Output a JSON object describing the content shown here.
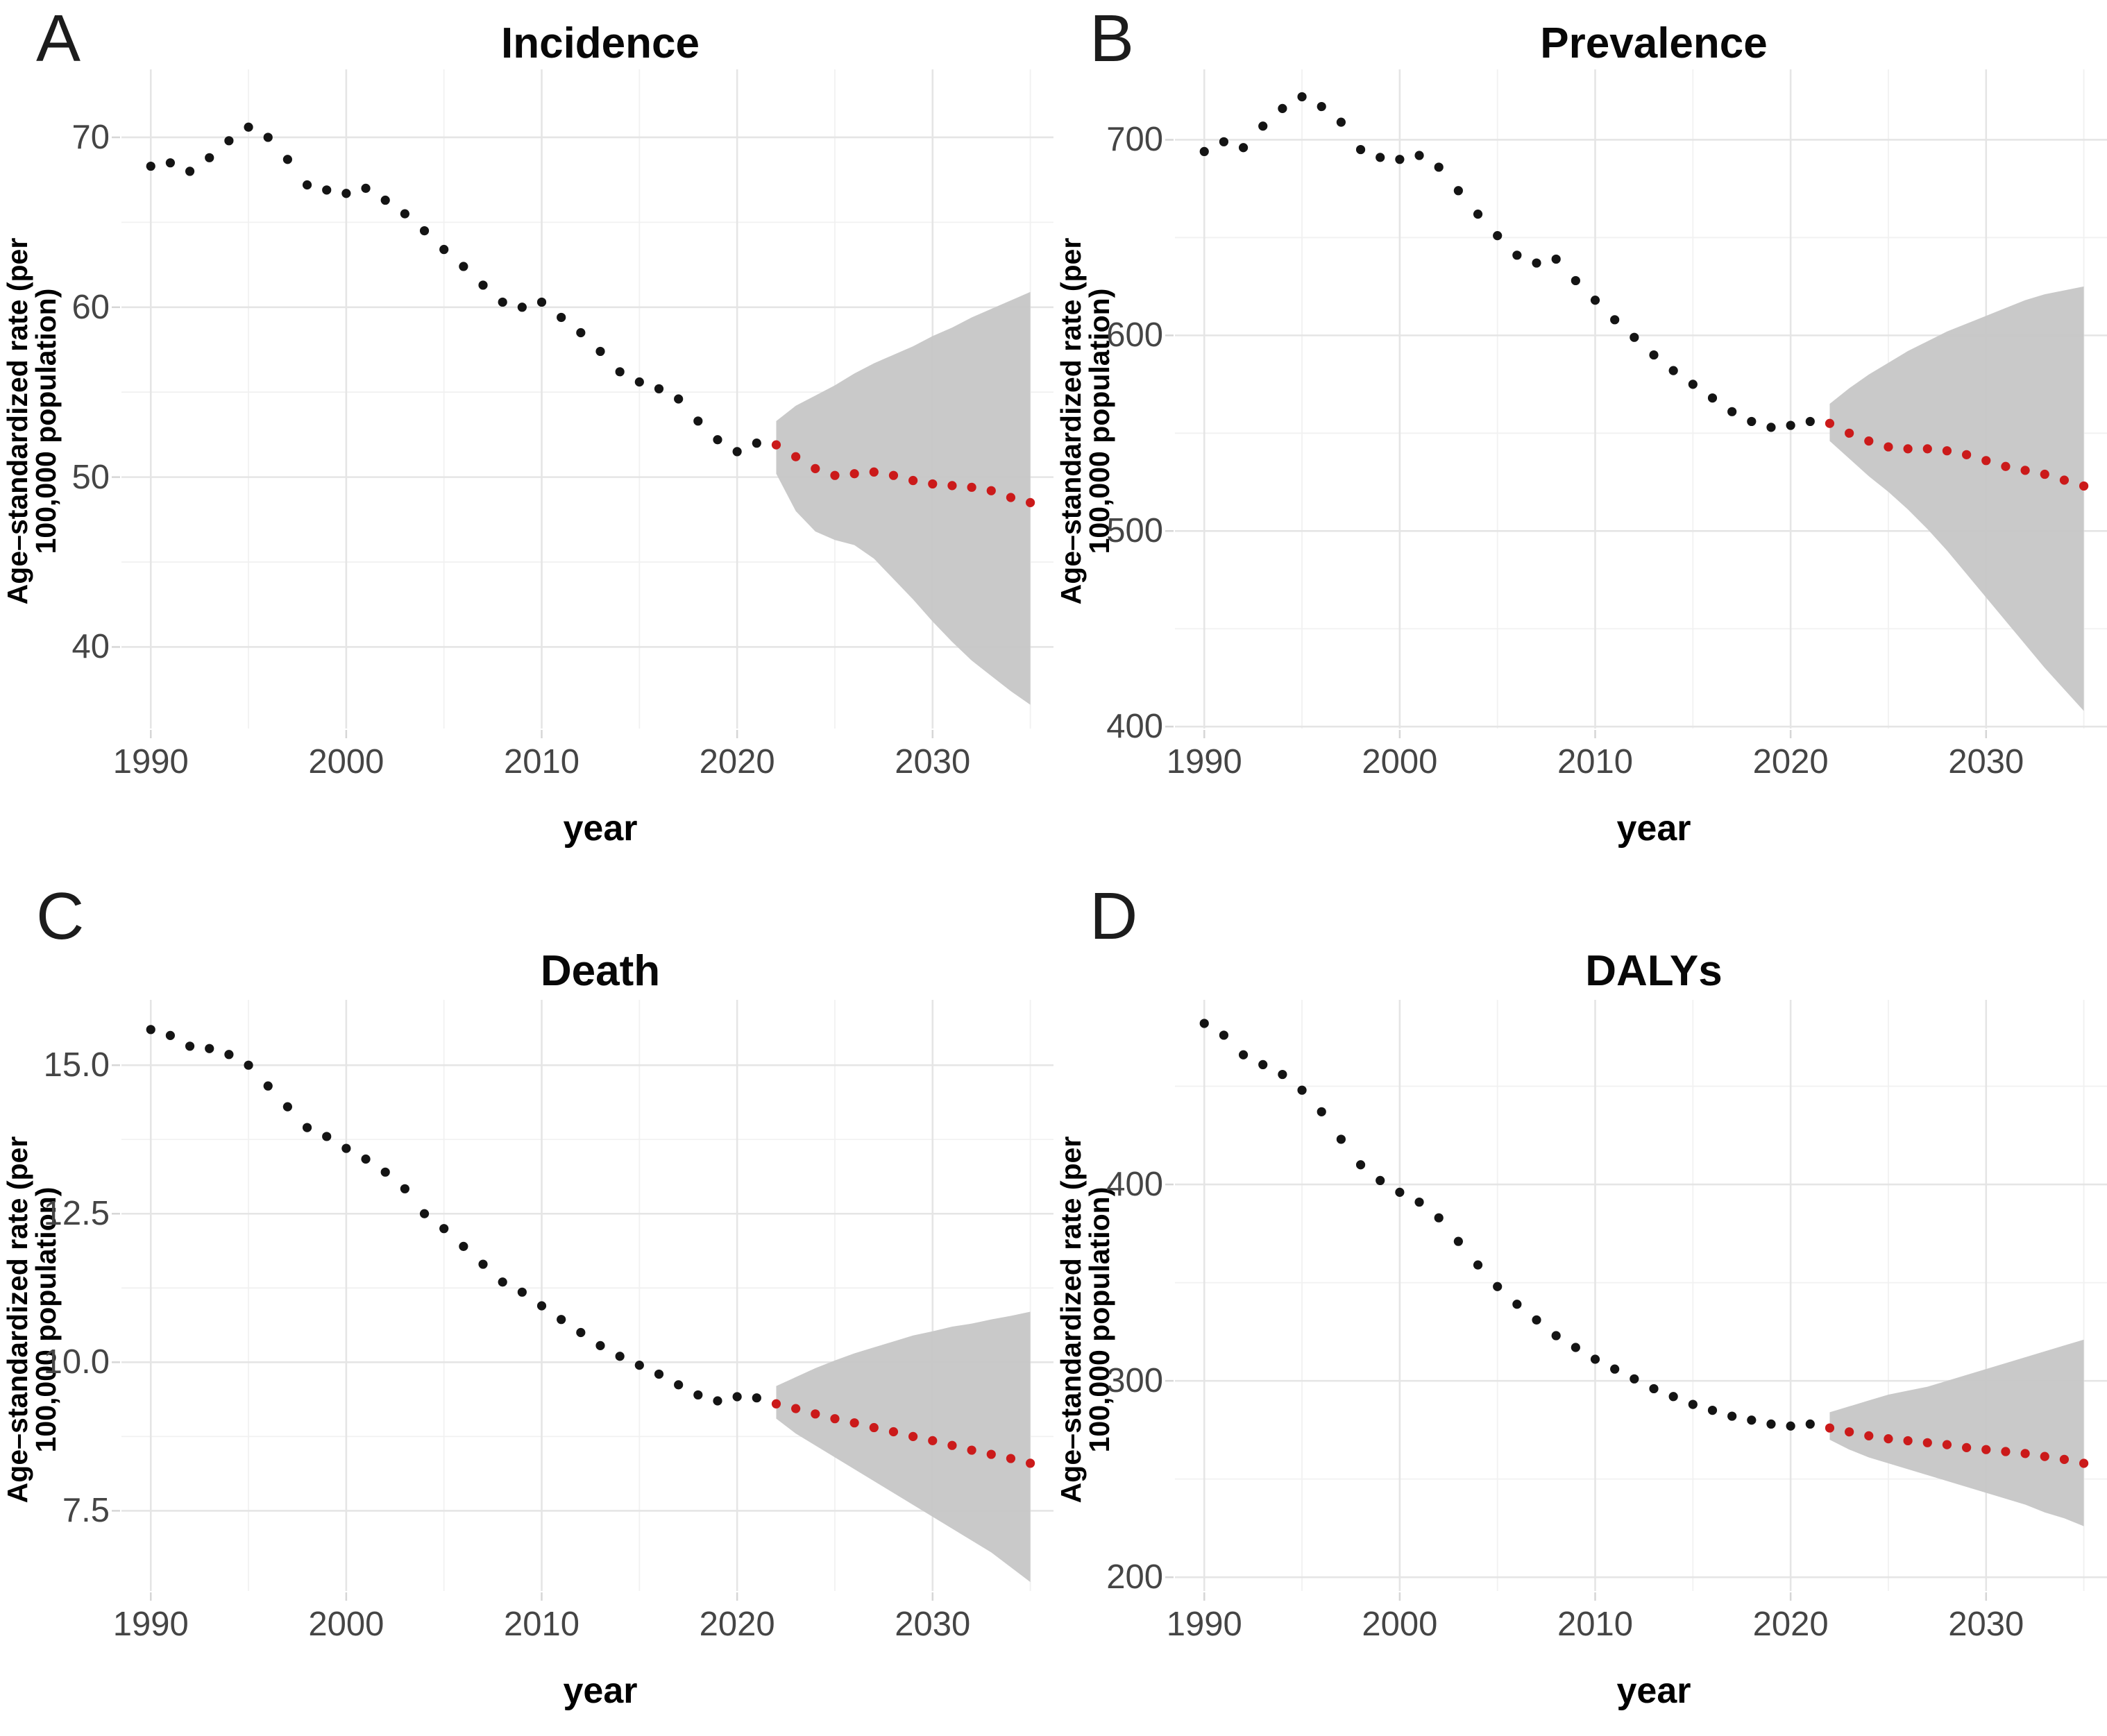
{
  "figure": {
    "xlabel": "year",
    "ylabel": "Age–standardized rate (per 100,000 population)",
    "x_domain": [
      1988.5,
      2037.5
    ],
    "x_ticks": [
      1990,
      2000,
      2010,
      2020,
      2030
    ],
    "x_tick_labels": [
      "1990",
      "2000",
      "2010",
      "2020",
      "2030"
    ],
    "x_minor_ticks": [
      1995,
      2005,
      2015,
      2025,
      2035
    ]
  },
  "colors": {
    "background": "#ffffff",
    "observed_point": "#141414",
    "projected_point": "#cb1a1a",
    "ribbon": "#c7c7c7",
    "grid_major": "#e5e5e5",
    "grid_minor": "#f1f1f1",
    "axis_tick": "#d6d6d6",
    "tick_label": "#454545",
    "text": "#000000"
  },
  "chart_data": [
    {
      "panel_label": "A",
      "title": "Incidence",
      "clipped_marks": "● ● ● ● ●",
      "type": "scatter",
      "xlabel": "year",
      "ylabel": "Age–standardized rate (per 100,000 population)",
      "y_domain": [
        35.2,
        74.0
      ],
      "y_ticks": [
        40,
        50,
        60,
        70
      ],
      "y_tick_labels": [
        "40",
        "50",
        "60",
        "70"
      ],
      "y_minor_ticks": [
        45,
        55,
        65
      ],
      "observed": {
        "years": [
          1990,
          1991,
          1992,
          1993,
          1994,
          1995,
          1996,
          1997,
          1998,
          1999,
          2000,
          2001,
          2002,
          2003,
          2004,
          2005,
          2006,
          2007,
          2008,
          2009,
          2010,
          2011,
          2012,
          2013,
          2014,
          2015,
          2016,
          2017,
          2018,
          2019,
          2020,
          2021
        ],
        "values": [
          68.3,
          68.5,
          68.0,
          68.8,
          69.8,
          70.6,
          70.0,
          68.7,
          67.2,
          66.9,
          66.7,
          67.0,
          66.3,
          65.5,
          64.5,
          63.4,
          62.4,
          61.3,
          60.3,
          60.0,
          60.3,
          59.4,
          58.5,
          57.4,
          56.2,
          55.6,
          55.2,
          54.6,
          53.3,
          52.2,
          51.5,
          52.0
        ]
      },
      "projected": {
        "years": [
          2022,
          2023,
          2024,
          2025,
          2026,
          2027,
          2028,
          2029,
          2030,
          2031,
          2032,
          2033,
          2034,
          2035
        ],
        "values": [
          51.9,
          51.2,
          50.5,
          50.1,
          50.2,
          50.3,
          50.1,
          49.8,
          49.6,
          49.5,
          49.4,
          49.2,
          48.8,
          48.5
        ]
      },
      "uncertainty_ribbon": {
        "years": [
          2022,
          2023,
          2024,
          2025,
          2026,
          2027,
          2028,
          2029,
          2030,
          2031,
          2032,
          2033,
          2034,
          2035
        ],
        "upper": [
          53.3,
          54.2,
          54.8,
          55.4,
          56.1,
          56.7,
          57.2,
          57.7,
          58.3,
          58.8,
          59.4,
          59.9,
          60.4,
          60.9
        ],
        "lower": [
          50.2,
          48.0,
          46.8,
          46.3,
          46.0,
          45.2,
          44.0,
          42.8,
          41.5,
          40.3,
          39.2,
          38.3,
          37.4,
          36.6
        ]
      }
    },
    {
      "panel_label": "B",
      "title": "Prevalence",
      "type": "scatter",
      "xlabel": "year",
      "ylabel": "Age–standardized rate (per 100,000 population)",
      "y_domain": [
        399,
        736
      ],
      "y_ticks": [
        400,
        500,
        600,
        700
      ],
      "y_tick_labels": [
        "400",
        "500",
        "600",
        "700"
      ],
      "y_minor_ticks": [
        450,
        550,
        650
      ],
      "observed": {
        "years": [
          1990,
          1991,
          1992,
          1993,
          1994,
          1995,
          1996,
          1997,
          1998,
          1999,
          2000,
          2001,
          2002,
          2003,
          2004,
          2005,
          2006,
          2007,
          2008,
          2009,
          2010,
          2011,
          2012,
          2013,
          2014,
          2015,
          2016,
          2017,
          2018,
          2019,
          2020,
          2021
        ],
        "values": [
          694,
          699,
          696,
          707,
          716,
          722,
          717,
          709,
          695,
          691,
          690,
          692,
          686,
          674,
          662,
          651,
          641,
          637,
          639,
          628,
          618,
          608,
          599,
          590,
          582,
          575,
          568,
          561,
          556,
          553,
          554,
          556
        ]
      },
      "projected": {
        "years": [
          2022,
          2023,
          2024,
          2025,
          2026,
          2027,
          2028,
          2029,
          2030,
          2031,
          2032,
          2033,
          2034,
          2035
        ],
        "values": [
          555,
          550,
          546,
          543,
          542,
          542,
          541,
          539,
          536,
          533,
          531,
          529,
          526,
          523
        ]
      },
      "uncertainty_ribbon": {
        "years": [
          2022,
          2023,
          2024,
          2025,
          2026,
          2027,
          2028,
          2029,
          2030,
          2031,
          2032,
          2033,
          2034,
          2035
        ],
        "upper": [
          565,
          573,
          580,
          586,
          592,
          597,
          602,
          606,
          610,
          614,
          618,
          621,
          623,
          625
        ],
        "lower": [
          546,
          537,
          528,
          520,
          511,
          501,
          490,
          478,
          466,
          454,
          442,
          430,
          419,
          408
        ]
      }
    },
    {
      "panel_label": "C",
      "title": "Death",
      "type": "scatter",
      "xlabel": "year",
      "ylabel": "Age–standardized rate (per 100,000 population)",
      "y_domain": [
        6.15,
        16.1
      ],
      "y_ticks": [
        7.5,
        10.0,
        12.5,
        15.0
      ],
      "y_tick_labels": [
        "7.5",
        "10.0",
        "12.5",
        "15.0"
      ],
      "y_minor_ticks": [
        8.75,
        11.25,
        13.75
      ],
      "observed": {
        "years": [
          1990,
          1991,
          1992,
          1993,
          1994,
          1995,
          1996,
          1997,
          1998,
          1999,
          2000,
          2001,
          2002,
          2003,
          2004,
          2005,
          2006,
          2007,
          2008,
          2009,
          2010,
          2011,
          2012,
          2013,
          2014,
          2015,
          2016,
          2017,
          2018,
          2019,
          2020,
          2021
        ],
        "values": [
          15.6,
          15.5,
          15.32,
          15.28,
          15.18,
          15.0,
          14.65,
          14.3,
          13.95,
          13.8,
          13.6,
          13.42,
          13.2,
          12.92,
          12.5,
          12.25,
          11.95,
          11.65,
          11.35,
          11.18,
          10.95,
          10.72,
          10.5,
          10.28,
          10.1,
          9.95,
          9.8,
          9.62,
          9.45,
          9.35,
          9.42,
          9.4
        ]
      },
      "projected": {
        "years": [
          2022,
          2023,
          2024,
          2025,
          2026,
          2027,
          2028,
          2029,
          2030,
          2031,
          2032,
          2033,
          2034,
          2035
        ],
        "values": [
          9.3,
          9.22,
          9.13,
          9.05,
          8.98,
          8.9,
          8.83,
          8.75,
          8.68,
          8.6,
          8.52,
          8.45,
          8.38,
          8.3
        ]
      },
      "uncertainty_ribbon": {
        "years": [
          2022,
          2023,
          2024,
          2025,
          2026,
          2027,
          2028,
          2029,
          2030,
          2031,
          2032,
          2033,
          2034,
          2035
        ],
        "upper": [
          9.6,
          9.75,
          9.9,
          10.03,
          10.15,
          10.25,
          10.35,
          10.45,
          10.52,
          10.6,
          10.65,
          10.72,
          10.78,
          10.85
        ],
        "lower": [
          9.05,
          8.8,
          8.6,
          8.4,
          8.2,
          8.0,
          7.8,
          7.6,
          7.4,
          7.2,
          7.0,
          6.8,
          6.55,
          6.3
        ]
      }
    },
    {
      "panel_label": "D",
      "title": "DALYs",
      "type": "scatter",
      "xlabel": "year",
      "ylabel": "Age–standardized rate (per 100,000 population)",
      "y_domain": [
        193,
        494
      ],
      "y_ticks": [
        200,
        300,
        400
      ],
      "y_tick_labels": [
        "200",
        "300",
        "400"
      ],
      "y_minor_ticks": [
        250,
        350,
        450
      ],
      "observed": {
        "years": [
          1990,
          1991,
          1992,
          1993,
          1994,
          1995,
          1996,
          1997,
          1998,
          1999,
          2000,
          2001,
          2002,
          2003,
          2004,
          2005,
          2006,
          2007,
          2008,
          2009,
          2010,
          2011,
          2012,
          2013,
          2014,
          2015,
          2016,
          2017,
          2018,
          2019,
          2020,
          2021
        ],
        "values": [
          482,
          476,
          466,
          461,
          456,
          448,
          437,
          423,
          410,
          402,
          396,
          391,
          383,
          371,
          359,
          348,
          339,
          331,
          323,
          317,
          311,
          306,
          301,
          296,
          292,
          288,
          285,
          282,
          280,
          278,
          277,
          278
        ]
      },
      "projected": {
        "years": [
          2022,
          2023,
          2024,
          2025,
          2026,
          2027,
          2028,
          2029,
          2030,
          2031,
          2032,
          2033,
          2034,
          2035
        ],
        "values": [
          276,
          274,
          272,
          270.5,
          269.5,
          268.5,
          267.5,
          266,
          265,
          264,
          263,
          261.5,
          260,
          258
        ]
      },
      "uncertainty_ribbon": {
        "years": [
          2022,
          2023,
          2024,
          2025,
          2026,
          2027,
          2028,
          2029,
          2030,
          2031,
          2032,
          2033,
          2034,
          2035
        ],
        "upper": [
          284,
          287,
          290,
          293,
          295,
          297,
          300,
          303,
          306,
          309,
          312,
          315,
          318,
          321
        ],
        "lower": [
          270,
          265,
          261,
          258,
          255,
          252,
          249,
          246,
          243,
          240,
          237,
          233,
          230,
          226
        ]
      }
    }
  ]
}
